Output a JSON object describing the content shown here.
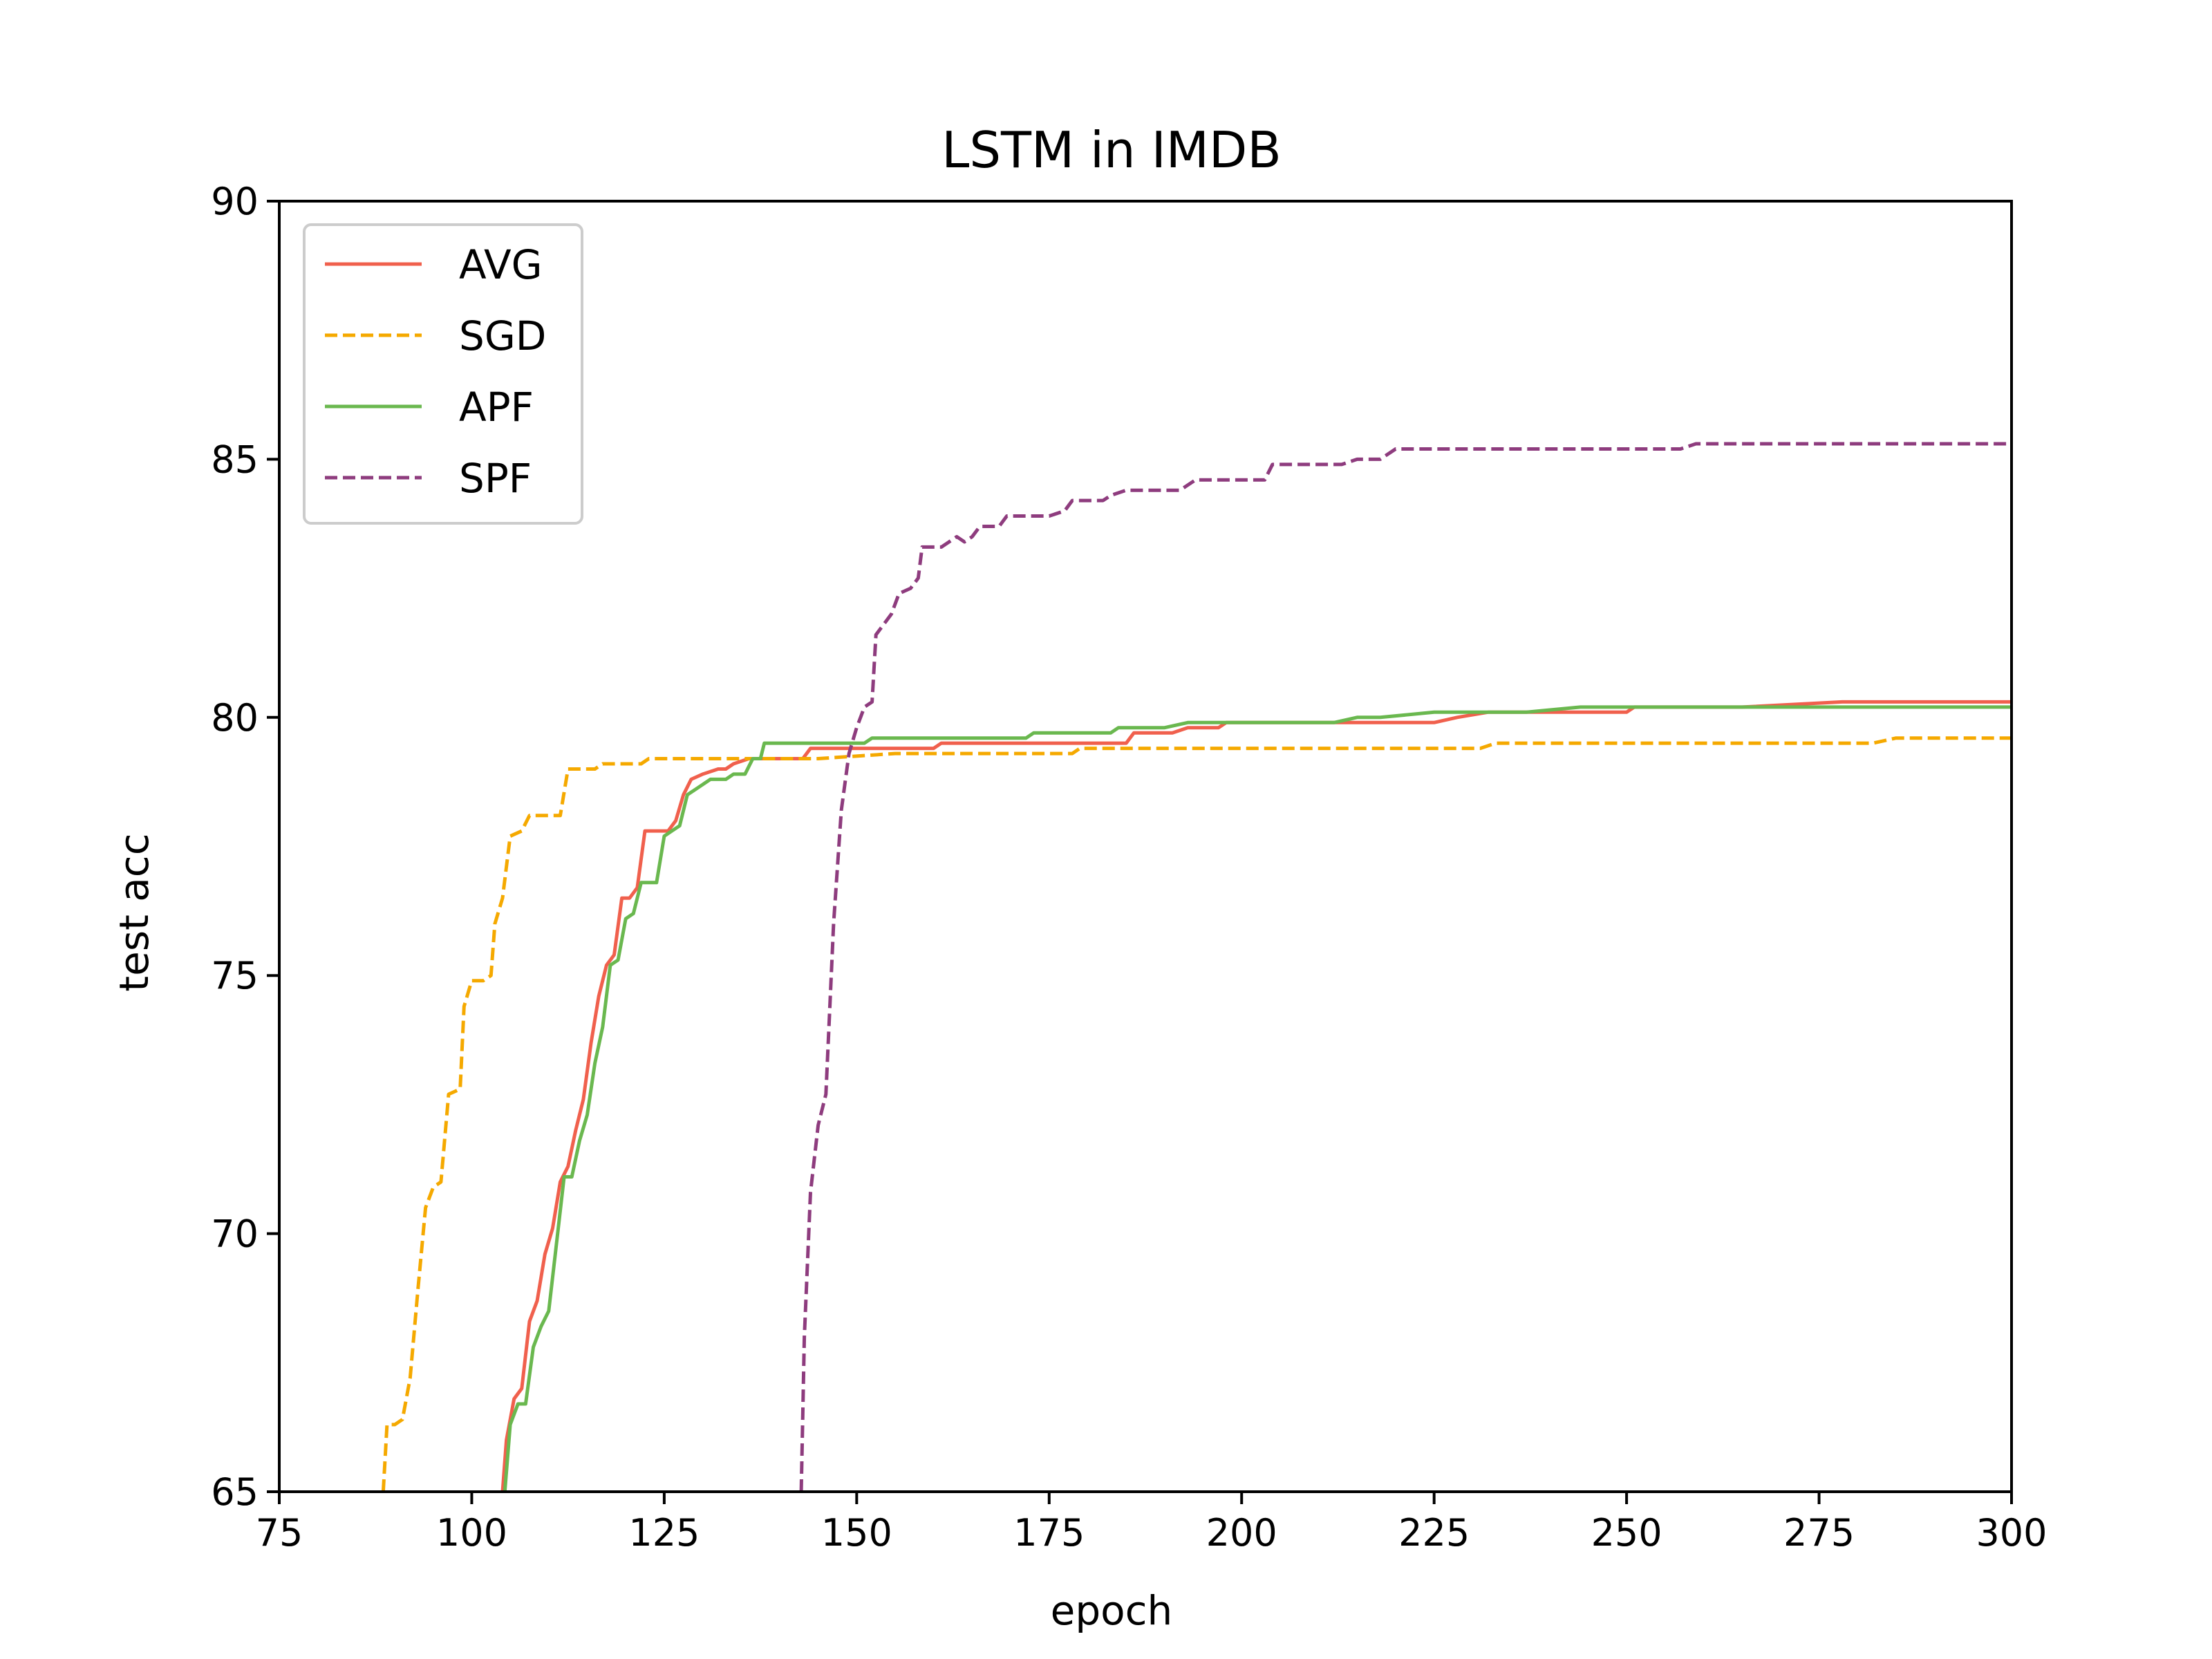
{
  "chart_data": {
    "type": "line",
    "title": "LSTM in IMDB",
    "xlabel": "epoch",
    "ylabel": "test acc",
    "xlim": [
      75,
      300
    ],
    "ylim": [
      65,
      90
    ],
    "xticks": [
      "75",
      "100",
      "125",
      "150",
      "175",
      "200",
      "225",
      "250",
      "275",
      "300"
    ],
    "yticks": [
      "65",
      "70",
      "75",
      "80",
      "85",
      "90"
    ],
    "grid": false,
    "legend_position": "top-left",
    "series": [
      {
        "name": "AVG",
        "color": "#f0604d",
        "dash": "solid",
        "points": [
          [
            104,
            65
          ],
          [
            104.5,
            66
          ],
          [
            105.5,
            66.8
          ],
          [
            106.5,
            67
          ],
          [
            107.5,
            68.3
          ],
          [
            108.5,
            68.7
          ],
          [
            109.5,
            69.6
          ],
          [
            110.5,
            70.1
          ],
          [
            111.5,
            71
          ],
          [
            112.5,
            71.3
          ],
          [
            113.5,
            72
          ],
          [
            114.5,
            72.6
          ],
          [
            115.5,
            73.7
          ],
          [
            116.5,
            74.6
          ],
          [
            117.5,
            75.2
          ],
          [
            118.5,
            75.4
          ],
          [
            119.5,
            76.5
          ],
          [
            120.5,
            76.5
          ],
          [
            121.5,
            76.7
          ],
          [
            122.5,
            77.8
          ],
          [
            124,
            77.8
          ],
          [
            125.5,
            77.8
          ],
          [
            126.5,
            78
          ],
          [
            127.5,
            78.5
          ],
          [
            128.5,
            78.8
          ],
          [
            130,
            78.9
          ],
          [
            132,
            79
          ],
          [
            133,
            79
          ],
          [
            134,
            79.1
          ],
          [
            136,
            79.2
          ],
          [
            140,
            79.2
          ],
          [
            143,
            79.2
          ],
          [
            144,
            79.4
          ],
          [
            150,
            79.4
          ],
          [
            160,
            79.4
          ],
          [
            161,
            79.5
          ],
          [
            170,
            79.5
          ],
          [
            185,
            79.5
          ],
          [
            186,
            79.7
          ],
          [
            191,
            79.7
          ],
          [
            193,
            79.8
          ],
          [
            197,
            79.8
          ],
          [
            198,
            79.9
          ],
          [
            205,
            79.9
          ],
          [
            210,
            79.9
          ],
          [
            220,
            79.9
          ],
          [
            225,
            79.9
          ],
          [
            228,
            80
          ],
          [
            232,
            80.1
          ],
          [
            245,
            80.1
          ],
          [
            250,
            80.1
          ],
          [
            251,
            80.2
          ],
          [
            265,
            80.2
          ],
          [
            278,
            80.3
          ],
          [
            286,
            80.3
          ],
          [
            294,
            80.3
          ],
          [
            300,
            80.3
          ]
        ]
      },
      {
        "name": "SGD",
        "color": "#f5a900",
        "dash": "dashed",
        "points": [
          [
            88.5,
            65
          ],
          [
            89,
            66.3
          ],
          [
            90,
            66.3
          ],
          [
            91,
            66.4
          ],
          [
            92,
            67.2
          ],
          [
            93,
            68.9
          ],
          [
            94,
            70.5
          ],
          [
            95,
            70.9
          ],
          [
            96,
            71
          ],
          [
            97,
            72.7
          ],
          [
            98.5,
            72.8
          ],
          [
            99,
            74.4
          ],
          [
            100,
            74.9
          ],
          [
            101.5,
            74.9
          ],
          [
            102.5,
            75
          ],
          [
            103,
            76
          ],
          [
            104,
            76.5
          ],
          [
            105,
            77.7
          ],
          [
            106.5,
            77.8
          ],
          [
            107.5,
            78.1
          ],
          [
            110,
            78.1
          ],
          [
            111.5,
            78.1
          ],
          [
            112.5,
            79
          ],
          [
            116,
            79
          ],
          [
            117,
            79.1
          ],
          [
            122,
            79.1
          ],
          [
            123,
            79.2
          ],
          [
            135,
            79.2
          ],
          [
            145,
            79.2
          ],
          [
            155,
            79.3
          ],
          [
            170,
            79.3
          ],
          [
            178,
            79.3
          ],
          [
            179,
            79.4
          ],
          [
            200,
            79.4
          ],
          [
            225,
            79.4
          ],
          [
            231,
            79.4
          ],
          [
            233,
            79.5
          ],
          [
            245,
            79.5
          ],
          [
            250,
            79.5
          ],
          [
            260,
            79.5
          ],
          [
            282,
            79.5
          ],
          [
            285,
            79.6
          ],
          [
            300,
            79.6
          ]
        ]
      },
      {
        "name": "APF",
        "color": "#6ab84f",
        "dash": "solid",
        "points": [
          [
            104.3,
            65
          ],
          [
            105,
            66.3
          ],
          [
            106,
            66.7
          ],
          [
            107,
            66.7
          ],
          [
            108,
            67.8
          ],
          [
            109,
            68.2
          ],
          [
            110,
            68.5
          ],
          [
            111,
            69.8
          ],
          [
            112,
            71.1
          ],
          [
            113,
            71.1
          ],
          [
            114,
            71.8
          ],
          [
            115,
            72.3
          ],
          [
            116,
            73.3
          ],
          [
            117,
            74
          ],
          [
            118,
            75.2
          ],
          [
            119,
            75.3
          ],
          [
            120,
            76.1
          ],
          [
            121,
            76.2
          ],
          [
            122,
            76.8
          ],
          [
            123,
            76.8
          ],
          [
            124,
            76.8
          ],
          [
            125,
            77.7
          ],
          [
            126,
            77.8
          ],
          [
            127,
            77.9
          ],
          [
            128,
            78.5
          ],
          [
            129,
            78.6
          ],
          [
            130,
            78.7
          ],
          [
            131,
            78.8
          ],
          [
            133,
            78.8
          ],
          [
            134,
            78.9
          ],
          [
            135.5,
            78.9
          ],
          [
            136.5,
            79.2
          ],
          [
            137.5,
            79.2
          ],
          [
            138,
            79.5
          ],
          [
            145,
            79.5
          ],
          [
            151,
            79.5
          ],
          [
            152,
            79.6
          ],
          [
            160,
            79.6
          ],
          [
            172,
            79.6
          ],
          [
            173,
            79.7
          ],
          [
            183,
            79.7
          ],
          [
            184,
            79.8
          ],
          [
            188,
            79.8
          ],
          [
            190,
            79.8
          ],
          [
            193,
            79.9
          ],
          [
            200,
            79.9
          ],
          [
            212,
            79.9
          ],
          [
            215,
            80
          ],
          [
            218,
            80
          ],
          [
            225,
            80.1
          ],
          [
            232,
            80.1
          ],
          [
            237,
            80.1
          ],
          [
            244,
            80.2
          ],
          [
            255,
            80.2
          ],
          [
            270,
            80.2
          ],
          [
            300,
            80.2
          ]
        ]
      },
      {
        "name": "SPF",
        "color": "#8e3c7e",
        "dash": "dashed",
        "points": [
          [
            142.8,
            65
          ],
          [
            143.2,
            68
          ],
          [
            144,
            70.8
          ],
          [
            145,
            72.1
          ],
          [
            146,
            72.7
          ],
          [
            147,
            76
          ],
          [
            148,
            78.2
          ],
          [
            149,
            79.3
          ],
          [
            150,
            79.8
          ],
          [
            151,
            80.2
          ],
          [
            152,
            80.3
          ],
          [
            152.5,
            81.6
          ],
          [
            153.5,
            81.8
          ],
          [
            154.5,
            82
          ],
          [
            155.5,
            82.4
          ],
          [
            157,
            82.5
          ],
          [
            158,
            82.7
          ],
          [
            158.5,
            83.3
          ],
          [
            161,
            83.3
          ],
          [
            162,
            83.4
          ],
          [
            163,
            83.5
          ],
          [
            164,
            83.4
          ],
          [
            165,
            83.5
          ],
          [
            166,
            83.7
          ],
          [
            168.5,
            83.7
          ],
          [
            169.5,
            83.9
          ],
          [
            175,
            83.9
          ],
          [
            177,
            84
          ],
          [
            178,
            84.2
          ],
          [
            182,
            84.2
          ],
          [
            183,
            84.3
          ],
          [
            185,
            84.4
          ],
          [
            190,
            84.4
          ],
          [
            192,
            84.4
          ],
          [
            194,
            84.6
          ],
          [
            200,
            84.6
          ],
          [
            203,
            84.6
          ],
          [
            204,
            84.9
          ],
          [
            213,
            84.9
          ],
          [
            215,
            85
          ],
          [
            218,
            85
          ],
          [
            220,
            85.2
          ],
          [
            235,
            85.2
          ],
          [
            257,
            85.2
          ],
          [
            259,
            85.3
          ],
          [
            300,
            85.3
          ]
        ]
      }
    ]
  }
}
